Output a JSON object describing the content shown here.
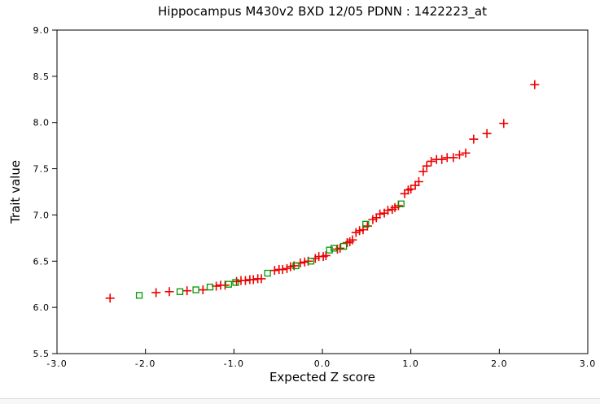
{
  "chart": {
    "title": "Hippocampus M430v2 BXD 12/05 PDNN : 1422223_at",
    "xlabel": "Expected Z score",
    "ylabel": "Trait value"
  },
  "colors": {
    "axis": "#000000",
    "red_marker": "#ee0000",
    "green_marker": "#009900",
    "background": "#ffffff",
    "bottom_divider": "#d9d9d9"
  },
  "chart_data": {
    "type": "scatter",
    "title": "Hippocampus M430v2 BXD 12/05 PDNN : 1422223_at",
    "xlabel": "Expected Z score",
    "ylabel": "Trait value",
    "xlim": [
      -3.0,
      3.0
    ],
    "ylim": [
      5.5,
      9.0
    ],
    "x_ticks": [
      -3.0,
      -2.0,
      -1.0,
      0.0,
      1.0,
      2.0,
      3.0
    ],
    "y_ticks": [
      5.5,
      6.0,
      6.5,
      7.0,
      7.5,
      8.0,
      8.5,
      9.0
    ],
    "grid": false,
    "legend": false,
    "series": [
      {
        "name": "red-plus-points",
        "marker": "plus",
        "color": "#ee0000",
        "points": [
          [
            -2.4,
            6.1
          ],
          [
            -1.88,
            6.16
          ],
          [
            -1.73,
            6.17
          ],
          [
            -1.53,
            6.18
          ],
          [
            -1.35,
            6.19
          ],
          [
            -1.2,
            6.23
          ],
          [
            -1.15,
            6.24
          ],
          [
            -1.1,
            6.24
          ],
          [
            -0.97,
            6.28
          ],
          [
            -0.92,
            6.29
          ],
          [
            -0.87,
            6.29
          ],
          [
            -0.82,
            6.3
          ],
          [
            -0.78,
            6.3
          ],
          [
            -0.73,
            6.31
          ],
          [
            -0.69,
            6.31
          ],
          [
            -0.54,
            6.4
          ],
          [
            -0.49,
            6.41
          ],
          [
            -0.45,
            6.41
          ],
          [
            -0.4,
            6.42
          ],
          [
            -0.36,
            6.44
          ],
          [
            -0.32,
            6.45
          ],
          [
            -0.25,
            6.48
          ],
          [
            -0.2,
            6.49
          ],
          [
            -0.16,
            6.5
          ],
          [
            -0.08,
            6.53
          ],
          [
            -0.04,
            6.55
          ],
          [
            0.01,
            6.55
          ],
          [
            0.04,
            6.56
          ],
          [
            0.17,
            6.63
          ],
          [
            0.2,
            6.64
          ],
          [
            0.28,
            6.7
          ],
          [
            0.31,
            6.71
          ],
          [
            0.34,
            6.73
          ],
          [
            0.38,
            6.81
          ],
          [
            0.42,
            6.83
          ],
          [
            0.46,
            6.84
          ],
          [
            0.51,
            6.88
          ],
          [
            0.57,
            6.95
          ],
          [
            0.61,
            6.97
          ],
          [
            0.65,
            7.01
          ],
          [
            0.7,
            7.02
          ],
          [
            0.74,
            7.05
          ],
          [
            0.79,
            7.06
          ],
          [
            0.82,
            7.08
          ],
          [
            0.86,
            7.1
          ],
          [
            0.93,
            7.23
          ],
          [
            0.97,
            7.27
          ],
          [
            1.0,
            7.28
          ],
          [
            1.05,
            7.32
          ],
          [
            1.09,
            7.36
          ],
          [
            1.14,
            7.47
          ],
          [
            1.18,
            7.53
          ],
          [
            1.23,
            7.58
          ],
          [
            1.29,
            7.6
          ],
          [
            1.35,
            7.6
          ],
          [
            1.41,
            7.62
          ],
          [
            1.48,
            7.62
          ],
          [
            1.55,
            7.65
          ],
          [
            1.62,
            7.67
          ],
          [
            1.71,
            7.82
          ],
          [
            1.86,
            7.88
          ],
          [
            2.05,
            7.99
          ],
          [
            2.4,
            8.41
          ]
        ]
      },
      {
        "name": "green-square-points",
        "marker": "open-square",
        "color": "#009900",
        "points": [
          [
            -2.07,
            6.13
          ],
          [
            -1.61,
            6.17
          ],
          [
            -1.43,
            6.19
          ],
          [
            -1.27,
            6.22
          ],
          [
            -1.06,
            6.25
          ],
          [
            -0.98,
            6.27
          ],
          [
            -0.62,
            6.37
          ],
          [
            -0.3,
            6.45
          ],
          [
            -0.13,
            6.5
          ],
          [
            0.08,
            6.62
          ],
          [
            0.13,
            6.64
          ],
          [
            0.24,
            6.66
          ],
          [
            0.49,
            6.9
          ],
          [
            0.89,
            7.12
          ]
        ]
      }
    ]
  }
}
